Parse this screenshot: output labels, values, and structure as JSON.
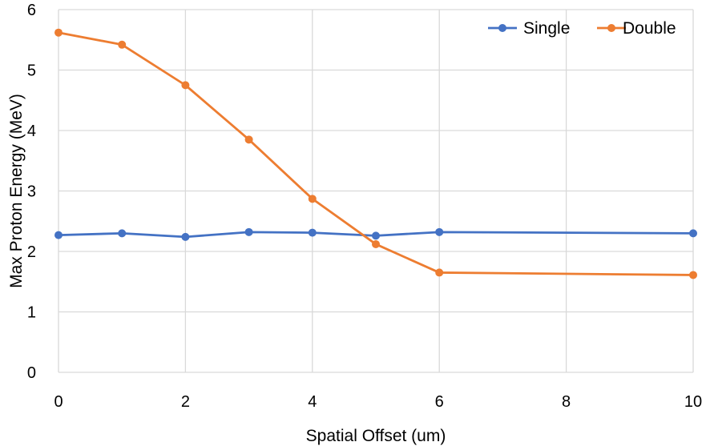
{
  "chart_data": {
    "type": "line",
    "title": "",
    "xlabel": "Spatial Offset (um)",
    "ylabel": "Max Proton Energy (MeV)",
    "xlim": [
      0,
      10
    ],
    "ylim": [
      0,
      6
    ],
    "xticks": [
      0,
      2,
      4,
      6,
      8,
      10
    ],
    "yticks": [
      0,
      1,
      2,
      3,
      4,
      5,
      6
    ],
    "grid": true,
    "legend_position": "top-right",
    "series": [
      {
        "name": "Single",
        "color": "#4472c4",
        "x": [
          0,
          1,
          2,
          3,
          4,
          5,
          6,
          10
        ],
        "y": [
          2.27,
          2.3,
          2.24,
          2.32,
          2.31,
          2.26,
          2.32,
          2.3
        ]
      },
      {
        "name": "Double",
        "color": "#ed7d31",
        "x": [
          0,
          1,
          2,
          3,
          4,
          5,
          6,
          10
        ],
        "y": [
          5.62,
          5.42,
          4.75,
          3.85,
          2.87,
          2.12,
          1.65,
          1.61
        ]
      }
    ]
  }
}
